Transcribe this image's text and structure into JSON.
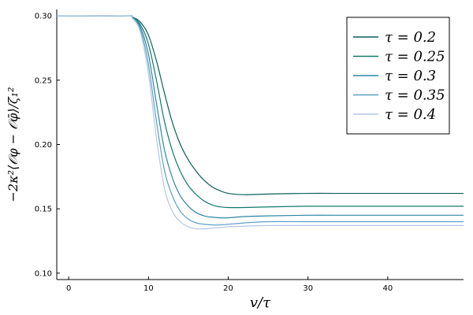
{
  "chart_data": {
    "type": "line",
    "title": "",
    "xlabel": "v/τ",
    "ylabel": "−2κ²⟨𝒪φ − 𝒪φ̄⟩/ζ₁²",
    "xlim": [
      -1.5,
      49.5
    ],
    "ylim": [
      0.095,
      0.305
    ],
    "xticks": [
      0,
      10,
      20,
      30,
      40
    ],
    "yticks": [
      0.1,
      0.15,
      0.2,
      0.25,
      0.3
    ],
    "ytick_labels": [
      "0.10",
      "0.15",
      "0.20",
      "0.25",
      "0.30"
    ],
    "grid": false,
    "legend_position": "top-right",
    "series": [
      {
        "name": "τ = 0.2",
        "color": "#0b5f58",
        "x": [
          -1.5,
          7,
          8,
          9,
          10,
          11,
          12,
          13,
          14,
          15,
          16,
          17,
          18,
          19,
          20,
          22,
          25,
          30,
          35,
          40,
          45,
          49.5
        ],
        "y": [
          0.3,
          0.3,
          0.299,
          0.295,
          0.285,
          0.265,
          0.24,
          0.217,
          0.2,
          0.188,
          0.179,
          0.172,
          0.167,
          0.164,
          0.162,
          0.161,
          0.1615,
          0.162,
          0.162,
          0.162,
          0.162,
          0.162
        ]
      },
      {
        "name": "τ = 0.25",
        "color": "#107a6a",
        "x": [
          -1.5,
          7,
          8,
          9,
          10,
          11,
          12,
          13,
          14,
          15,
          16,
          17,
          18,
          19,
          20,
          22,
          25,
          30,
          35,
          40,
          45,
          49.5
        ],
        "y": [
          0.3,
          0.3,
          0.299,
          0.293,
          0.278,
          0.25,
          0.218,
          0.195,
          0.179,
          0.168,
          0.161,
          0.156,
          0.153,
          0.1515,
          0.151,
          0.151,
          0.1515,
          0.152,
          0.152,
          0.152,
          0.152,
          0.152
        ]
      },
      {
        "name": "τ = 0.3",
        "color": "#2e86a6",
        "x": [
          -1.5,
          7,
          8,
          9,
          10,
          11,
          12,
          13,
          14,
          15,
          16,
          17,
          18,
          19,
          20,
          22,
          25,
          30,
          35,
          40,
          45,
          49.5
        ],
        "y": [
          0.3,
          0.3,
          0.299,
          0.291,
          0.27,
          0.232,
          0.196,
          0.174,
          0.16,
          0.152,
          0.147,
          0.1445,
          0.1435,
          0.143,
          0.143,
          0.144,
          0.1445,
          0.145,
          0.145,
          0.145,
          0.145,
          0.145
        ]
      },
      {
        "name": "τ = 0.35",
        "color": "#5a9fc6",
        "x": [
          -1.5,
          7,
          8,
          9,
          10,
          11,
          12,
          13,
          14,
          15,
          16,
          17,
          18,
          19,
          20,
          22,
          25,
          30,
          35,
          40,
          45,
          49.5
        ],
        "y": [
          0.3,
          0.3,
          0.298,
          0.289,
          0.262,
          0.218,
          0.18,
          0.16,
          0.148,
          0.142,
          0.139,
          0.138,
          0.1375,
          0.1375,
          0.138,
          0.139,
          0.14,
          0.14,
          0.14,
          0.14,
          0.14,
          0.14
        ]
      },
      {
        "name": "τ = 0.4",
        "color": "#b3c6e6",
        "x": [
          -1.5,
          7,
          8,
          9,
          10,
          11,
          12,
          13,
          14,
          15,
          16,
          17,
          18,
          19,
          20,
          22,
          25,
          30,
          35,
          40,
          45,
          49.5
        ],
        "y": [
          0.3,
          0.3,
          0.298,
          0.287,
          0.255,
          0.205,
          0.166,
          0.148,
          0.14,
          0.136,
          0.1345,
          0.1345,
          0.135,
          0.1355,
          0.136,
          0.1365,
          0.137,
          0.137,
          0.137,
          0.137,
          0.137,
          0.137
        ]
      }
    ]
  }
}
